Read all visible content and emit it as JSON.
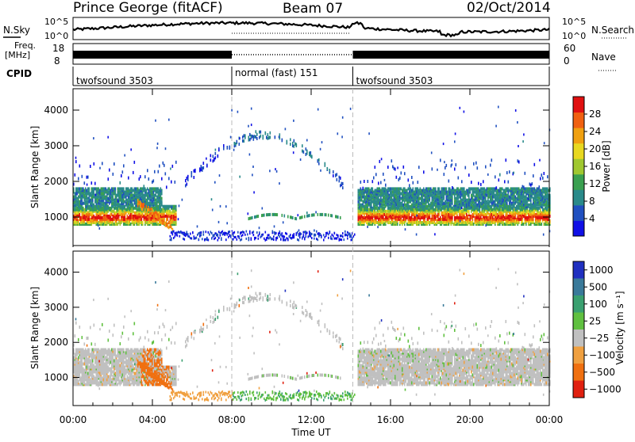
{
  "header": {
    "station": "Prince George (fitACF)",
    "beam": "Beam 07",
    "date": "02/Oct/2014"
  },
  "noise_panel": {
    "left_label": "N.Sky",
    "right_label": "N.Search",
    "y_ticks": [
      "10^5",
      "10^0"
    ]
  },
  "freq_panel": {
    "left_label_1": "Freq.",
    "left_label_2": "[MHz]",
    "left_ticks": [
      "18",
      "8"
    ],
    "right_ticks": [
      "60",
      "0"
    ],
    "right_label": "Nave",
    "cpid_label": "CPID"
  },
  "cpid_segments": [
    {
      "label": "twofsound 3503",
      "start": 0,
      "end": 8
    },
    {
      "label": "normal (fast) 151",
      "start": 8,
      "end": 14.1
    },
    {
      "label": "twofsound 3503",
      "start": 14.1,
      "end": 24
    }
  ],
  "chart_data": [
    {
      "type": "heatmap",
      "name": "power",
      "ylabel": "Slant Range [km]",
      "y_ticks": [
        "1000",
        "2000",
        "3000",
        "4000"
      ],
      "ylim": [
        200,
        4600
      ],
      "colorbar_label": "Power [dB]",
      "colorbar_ticks": [
        "4",
        "8",
        "12",
        "16",
        "20",
        "24",
        "28"
      ],
      "colorbar_range": [
        0,
        30
      ],
      "colors": [
        "#1010e6",
        "#2050c0",
        "#2a8a8a",
        "#3aa050",
        "#a0c830",
        "#e8d820",
        "#f0a010",
        "#f06010",
        "#e01010"
      ]
    },
    {
      "type": "heatmap",
      "name": "velocity",
      "ylabel": "Slant Range [km]",
      "y_ticks": [
        "1000",
        "2000",
        "3000",
        "4000"
      ],
      "ylim": [
        200,
        4600
      ],
      "colorbar_label": "Velocity [m s⁻¹]",
      "colorbar_ticks": [
        "1000",
        "500",
        "100",
        "25",
        "−25",
        "−100",
        "−500",
        "−1000"
      ],
      "colors": [
        "#2030c0",
        "#3a7a9a",
        "#3aa070",
        "#60c040",
        "#c0c0c0",
        "#f0a040",
        "#f07010",
        "#e02010"
      ]
    }
  ],
  "x_axis": {
    "ticks": [
      "00:00",
      "04:00",
      "08:00",
      "12:00",
      "16:00",
      "20:00",
      "00:00"
    ],
    "label": "Time UT",
    "range_hours": [
      0,
      24
    ]
  }
}
